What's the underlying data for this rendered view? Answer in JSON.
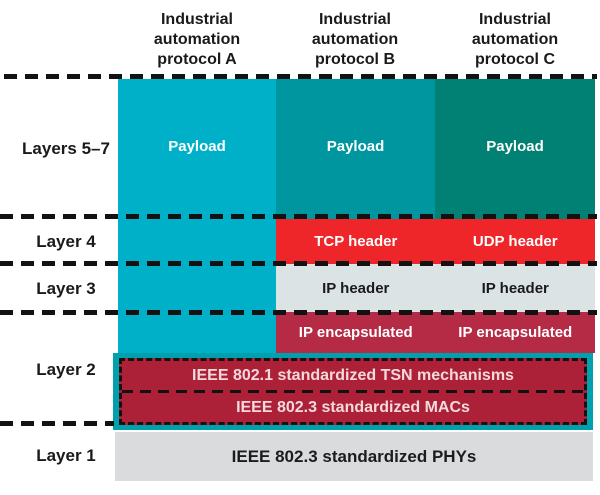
{
  "columns": [
    {
      "title": "Industrial automation protocol A",
      "payload_label": "Payload",
      "color": "#00b0c8"
    },
    {
      "title": "Industrial automation protocol B",
      "payload_label": "Payload",
      "color": "#0096a0"
    },
    {
      "title": "Industrial automation protocol C",
      "payload_label": "Payload",
      "color": "#008174"
    }
  ],
  "layers": [
    {
      "label": "Layers 5–7"
    },
    {
      "label": "Layer 4"
    },
    {
      "label": "Layer 3"
    },
    {
      "label": "Layer 2"
    },
    {
      "label": "Layer 1"
    }
  ],
  "bands": {
    "layer4": {
      "cells": [
        "TCP header",
        "UDP header"
      ],
      "color": "#ee2529"
    },
    "layer3": {
      "cells": [
        "IP header",
        "IP header"
      ],
      "color": "#dce3e5"
    },
    "encapsulation": {
      "cells": [
        "IP encapsulated",
        "IP encapsulated"
      ],
      "color": "#b52a45"
    },
    "layer2": {
      "rows": [
        "IEEE 802.1 standardized TSN mechanisms",
        "IEEE 802.3 standardized MACs"
      ],
      "frame_color": "#00a0ac",
      "fill_color": "#ad2138"
    },
    "layer1": {
      "label": "IEEE 802.3 standardized PHYs",
      "color": "#d9dbdc"
    }
  }
}
